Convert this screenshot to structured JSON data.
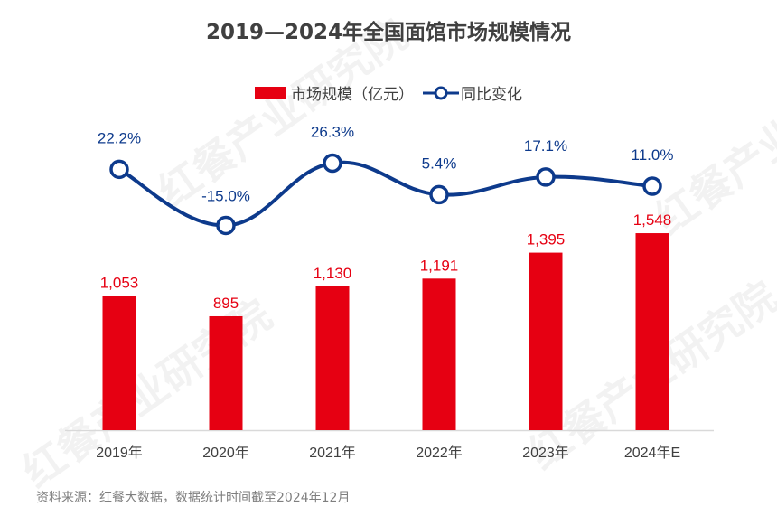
{
  "chart_data": {
    "type": "bar+line",
    "title": "2019—2024年全国面馆市场规模情况",
    "categories": [
      "2019年",
      "2020年",
      "2021年",
      "2022年",
      "2023年",
      "2024年E"
    ],
    "series": [
      {
        "name": "市场规模（亿元）",
        "type": "bar",
        "color": "#e60012",
        "values": [
          1053,
          895,
          1130,
          1191,
          1395,
          1548
        ],
        "labels": [
          "1,053",
          "895",
          "1,130",
          "1,191",
          "1,395",
          "1,548"
        ]
      },
      {
        "name": "同比变化",
        "type": "line",
        "color": "#0d3a8c",
        "values": [
          22.2,
          -15.0,
          26.3,
          5.4,
          17.1,
          11.0
        ],
        "labels": [
          "22.2%",
          "-15.0%",
          "26.3%",
          "5.4%",
          "17.1%",
          "11.0%"
        ]
      }
    ],
    "legend": "top",
    "grid": false
  },
  "source": "资料来源：红餐大数据，数据统计时间截至2024年12月",
  "watermark": "红餐产业研究院"
}
